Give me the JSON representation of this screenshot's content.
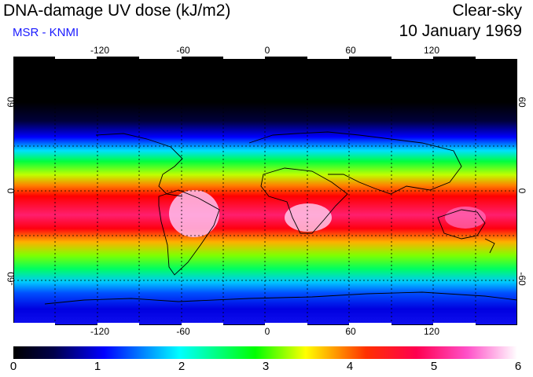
{
  "header": {
    "title": "DNA-damage UV dose (kJ/m2)",
    "subtitle": "MSR - KNMI",
    "condition": "Clear-sky",
    "date": "10 January 1969"
  },
  "map": {
    "projection": "equirectangular",
    "lon_range": [
      -180,
      180
    ],
    "lat_range": [
      -90,
      90
    ],
    "longitude_ticks": [
      "-120",
      "-60",
      "0",
      "60",
      "120"
    ],
    "latitude_ticks": [
      "60",
      "0",
      "-60"
    ],
    "gridlines": "dotted, every 30 degrees",
    "colorscale": [
      "#000000",
      "#0000ff",
      "#00ffff",
      "#00ff00",
      "#ffff00",
      "#ff0000",
      "#ff2a8c",
      "#ffffff"
    ]
  },
  "colorbar": {
    "labels": [
      "0",
      "1",
      "2",
      "3",
      "4",
      "5",
      "6"
    ],
    "range": [
      0,
      6
    ]
  }
}
